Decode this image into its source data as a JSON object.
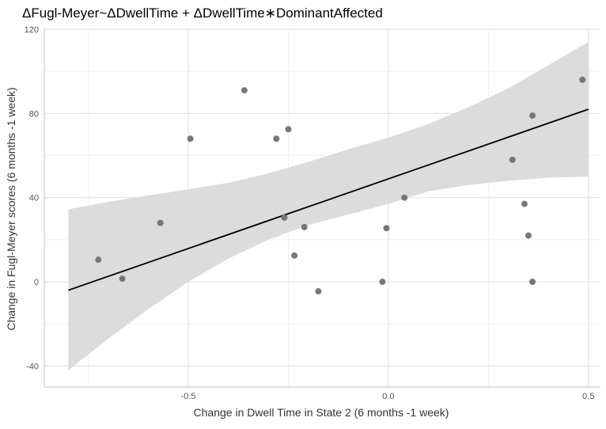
{
  "chart_data": {
    "type": "scatter",
    "title": "ΔFugl-Meyer~ΔDwellTime + ΔDwellTime∗DominantAffected",
    "xlabel": "Change in Dwell Time in State 2 (6 months -1 week)",
    "ylabel": "Change in Fugl-Meyer scores (6 months -1 week)",
    "xlim": [
      -0.86,
      0.53
    ],
    "ylim": [
      -50,
      120
    ],
    "xticks": [
      -0.5,
      0.0,
      0.5
    ],
    "xtick_labels": [
      "-0.5",
      "0.0",
      "0.5"
    ],
    "xminor": [
      -0.75,
      -0.25,
      0.25
    ],
    "yticks": [
      -40,
      0,
      40,
      80,
      120
    ],
    "ytick_labels": [
      "-40",
      "0",
      "40",
      "80",
      "120"
    ],
    "yminor": [
      -20,
      20,
      60,
      100
    ],
    "grid": true,
    "points": [
      {
        "x": -0.725,
        "y": 10.5
      },
      {
        "x": -0.665,
        "y": 1.5
      },
      {
        "x": -0.57,
        "y": 28
      },
      {
        "x": -0.495,
        "y": 68
      },
      {
        "x": -0.36,
        "y": 91
      },
      {
        "x": -0.28,
        "y": 68
      },
      {
        "x": -0.25,
        "y": 72.5
      },
      {
        "x": -0.26,
        "y": 30.5
      },
      {
        "x": -0.235,
        "y": 12.5
      },
      {
        "x": -0.21,
        "y": 26
      },
      {
        "x": -0.175,
        "y": -4.5
      },
      {
        "x": -0.015,
        "y": 0
      },
      {
        "x": -0.005,
        "y": 25.5
      },
      {
        "x": 0.04,
        "y": 40
      },
      {
        "x": 0.31,
        "y": 58
      },
      {
        "x": 0.34,
        "y": 37
      },
      {
        "x": 0.35,
        "y": 22
      },
      {
        "x": 0.36,
        "y": 79
      },
      {
        "x": 0.36,
        "y": 0
      },
      {
        "x": 0.485,
        "y": 96
      }
    ],
    "fit_line": {
      "x": [
        -0.8,
        0.5
      ],
      "y": [
        -4,
        82
      ]
    },
    "confidence_band": {
      "x": [
        -0.8,
        -0.7,
        -0.6,
        -0.5,
        -0.4,
        -0.3,
        -0.2,
        -0.1,
        0.0,
        0.1,
        0.2,
        0.3,
        0.4,
        0.5
      ],
      "lower": [
        -42,
        -27,
        -13,
        0,
        11,
        20,
        27,
        32,
        37,
        43,
        46,
        48,
        49.5,
        50
      ],
      "upper": [
        34.5,
        38,
        41,
        44,
        47,
        51.5,
        57,
        63,
        68.5,
        75,
        83,
        92,
        103,
        114
      ]
    },
    "colors": {
      "points": "#777777",
      "fit_line": "#000000",
      "band": "#dadada",
      "grid_major": "#e3e3e3",
      "grid_minor": "#f0f0f0",
      "axis": "#c2c2c2"
    }
  }
}
